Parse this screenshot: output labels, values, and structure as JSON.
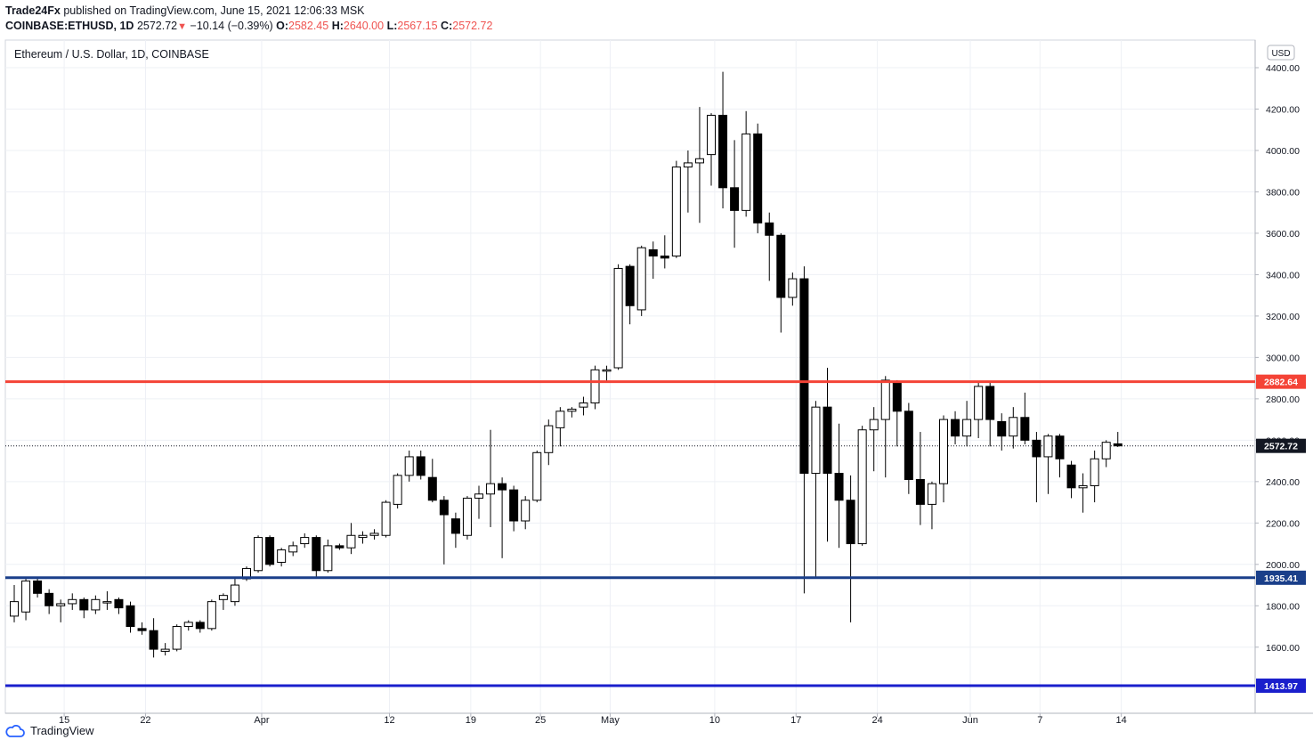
{
  "header": {
    "publisher": "Trade24Fx",
    "published_text": "published on TradingView.com, June 15, 2021 12:06:33 MSK",
    "symbol": "COINBASE:ETHUSD, 1D",
    "last": "2572.72",
    "change": "−10.14 (−0.39%)",
    "o_label": "O:",
    "o_value": "2582.45",
    "h_label": "H:",
    "h_value": "2640.00",
    "l_label": "L:",
    "l_value": "2567.15",
    "c_label": "C:",
    "c_value": "2572.72"
  },
  "footer": {
    "brand": "TradingView"
  },
  "colors": {
    "support_red": "#f44336",
    "support_blue": "#1a3f8a",
    "support_blue2": "#1a1fcc",
    "grid": "#f0f3fa"
  },
  "chart_data": {
    "type": "candlestick",
    "title": "Ethereum / U.S. Dollar, 1D, COINBASE",
    "currency": "USD",
    "ylim": [
      1380,
      4500
    ],
    "y_ticks": [
      1600,
      1800,
      2000,
      2200,
      2400,
      2600,
      2800,
      3000,
      3200,
      3400,
      3600,
      3800,
      4000,
      4200,
      4400
    ],
    "x_ticks": [
      {
        "label": "15",
        "index": 2
      },
      {
        "label": "22",
        "index": 9
      },
      {
        "label": "Apr",
        "index": 19
      },
      {
        "label": "12",
        "index": 30
      },
      {
        "label": "19",
        "index": 37
      },
      {
        "label": "25",
        "index": 43
      },
      {
        "label": "May",
        "index": 49
      },
      {
        "label": "10",
        "index": 58
      },
      {
        "label": "17",
        "index": 65
      },
      {
        "label": "24",
        "index": 72
      },
      {
        "label": "Jun",
        "index": 80
      },
      {
        "label": "7",
        "index": 86
      },
      {
        "label": "14",
        "index": 93
      }
    ],
    "levels": [
      {
        "value": 2882.64,
        "label": "2882.64",
        "color": "#f44336"
      },
      {
        "value": 1935.41,
        "label": "1935.41",
        "color": "#1a3f8a"
      },
      {
        "value": 1413.97,
        "label": "1413.97",
        "color": "#1a1fcc"
      }
    ],
    "last_price": {
      "value": 2572.72,
      "label": "2572.72"
    },
    "candles": [
      {
        "o": 1750,
        "h": 1900,
        "l": 1720,
        "c": 1820
      },
      {
        "o": 1770,
        "h": 1930,
        "l": 1730,
        "c": 1920
      },
      {
        "o": 1920,
        "h": 1935,
        "l": 1840,
        "c": 1860
      },
      {
        "o": 1860,
        "h": 1880,
        "l": 1760,
        "c": 1800
      },
      {
        "o": 1800,
        "h": 1830,
        "l": 1720,
        "c": 1810
      },
      {
        "o": 1810,
        "h": 1860,
        "l": 1780,
        "c": 1830
      },
      {
        "o": 1830,
        "h": 1840,
        "l": 1740,
        "c": 1780
      },
      {
        "o": 1780,
        "h": 1850,
        "l": 1760,
        "c": 1830
      },
      {
        "o": 1820,
        "h": 1870,
        "l": 1780,
        "c": 1820
      },
      {
        "o": 1830,
        "h": 1840,
        "l": 1760,
        "c": 1790
      },
      {
        "o": 1800,
        "h": 1820,
        "l": 1670,
        "c": 1700
      },
      {
        "o": 1690,
        "h": 1720,
        "l": 1660,
        "c": 1680
      },
      {
        "o": 1680,
        "h": 1740,
        "l": 1550,
        "c": 1590
      },
      {
        "o": 1580,
        "h": 1620,
        "l": 1560,
        "c": 1590
      },
      {
        "o": 1590,
        "h": 1710,
        "l": 1580,
        "c": 1700
      },
      {
        "o": 1700,
        "h": 1730,
        "l": 1680,
        "c": 1720
      },
      {
        "o": 1720,
        "h": 1730,
        "l": 1670,
        "c": 1690
      },
      {
        "o": 1690,
        "h": 1830,
        "l": 1680,
        "c": 1820
      },
      {
        "o": 1830,
        "h": 1860,
        "l": 1780,
        "c": 1850
      },
      {
        "o": 1820,
        "h": 1930,
        "l": 1800,
        "c": 1900
      },
      {
        "o": 1930,
        "h": 1990,
        "l": 1920,
        "c": 1980
      },
      {
        "o": 1970,
        "h": 2140,
        "l": 1960,
        "c": 2130
      },
      {
        "o": 2130,
        "h": 2140,
        "l": 1990,
        "c": 2000
      },
      {
        "o": 2010,
        "h": 2080,
        "l": 1990,
        "c": 2070
      },
      {
        "o": 2060,
        "h": 2110,
        "l": 2040,
        "c": 2090
      },
      {
        "o": 2100,
        "h": 2150,
        "l": 2080,
        "c": 2130
      },
      {
        "o": 2130,
        "h": 2140,
        "l": 1940,
        "c": 1970
      },
      {
        "o": 1970,
        "h": 2120,
        "l": 1960,
        "c": 2090
      },
      {
        "o": 2090,
        "h": 2100,
        "l": 2070,
        "c": 2080
      },
      {
        "o": 2080,
        "h": 2200,
        "l": 2050,
        "c": 2140
      },
      {
        "o": 2130,
        "h": 2160,
        "l": 2100,
        "c": 2140
      },
      {
        "o": 2140,
        "h": 2170,
        "l": 2120,
        "c": 2150
      },
      {
        "o": 2140,
        "h": 2310,
        "l": 2130,
        "c": 2300
      },
      {
        "o": 2290,
        "h": 2440,
        "l": 2270,
        "c": 2430
      },
      {
        "o": 2430,
        "h": 2550,
        "l": 2400,
        "c": 2520
      },
      {
        "o": 2520,
        "h": 2550,
        "l": 2410,
        "c": 2430
      },
      {
        "o": 2420,
        "h": 2510,
        "l": 2300,
        "c": 2310
      },
      {
        "o": 2310,
        "h": 2330,
        "l": 2000,
        "c": 2240
      },
      {
        "o": 2220,
        "h": 2250,
        "l": 2080,
        "c": 2150
      },
      {
        "o": 2140,
        "h": 2330,
        "l": 2120,
        "c": 2320
      },
      {
        "o": 2320,
        "h": 2380,
        "l": 2220,
        "c": 2340
      },
      {
        "o": 2340,
        "h": 2650,
        "l": 2180,
        "c": 2390
      },
      {
        "o": 2390,
        "h": 2420,
        "l": 2030,
        "c": 2360
      },
      {
        "o": 2360,
        "h": 2380,
        "l": 2160,
        "c": 2210
      },
      {
        "o": 2210,
        "h": 2330,
        "l": 2170,
        "c": 2310
      },
      {
        "o": 2310,
        "h": 2550,
        "l": 2300,
        "c": 2540
      },
      {
        "o": 2540,
        "h": 2700,
        "l": 2480,
        "c": 2670
      },
      {
        "o": 2660,
        "h": 2760,
        "l": 2570,
        "c": 2740
      },
      {
        "o": 2740,
        "h": 2760,
        "l": 2710,
        "c": 2750
      },
      {
        "o": 2760,
        "h": 2810,
        "l": 2720,
        "c": 2780
      },
      {
        "o": 2780,
        "h": 2960,
        "l": 2750,
        "c": 2940
      },
      {
        "o": 2940,
        "h": 2960,
        "l": 2880,
        "c": 2940
      },
      {
        "o": 2950,
        "h": 3450,
        "l": 2940,
        "c": 3430
      },
      {
        "o": 3440,
        "h": 3450,
        "l": 3160,
        "c": 3250
      },
      {
        "o": 3230,
        "h": 3540,
        "l": 3200,
        "c": 3530
      },
      {
        "o": 3520,
        "h": 3560,
        "l": 3380,
        "c": 3490
      },
      {
        "o": 3490,
        "h": 3590,
        "l": 3430,
        "c": 3480
      },
      {
        "o": 3490,
        "h": 3950,
        "l": 3480,
        "c": 3920
      },
      {
        "o": 3920,
        "h": 4000,
        "l": 3700,
        "c": 3940
      },
      {
        "o": 3940,
        "h": 4210,
        "l": 3650,
        "c": 3960
      },
      {
        "o": 3980,
        "h": 4180,
        "l": 3830,
        "c": 4170
      },
      {
        "o": 4170,
        "h": 4380,
        "l": 3720,
        "c": 3820
      },
      {
        "o": 3820,
        "h": 4050,
        "l": 3530,
        "c": 3710
      },
      {
        "o": 3710,
        "h": 4190,
        "l": 3680,
        "c": 4080
      },
      {
        "o": 4080,
        "h": 4130,
        "l": 3600,
        "c": 3650
      },
      {
        "o": 3650,
        "h": 3700,
        "l": 3370,
        "c": 3590
      },
      {
        "o": 3590,
        "h": 3600,
        "l": 3120,
        "c": 3290
      },
      {
        "o": 3290,
        "h": 3410,
        "l": 3250,
        "c": 3380
      },
      {
        "o": 3380,
        "h": 3440,
        "l": 1860,
        "c": 2440
      },
      {
        "o": 2440,
        "h": 2790,
        "l": 1940,
        "c": 2760
      },
      {
        "o": 2760,
        "h": 2950,
        "l": 2110,
        "c": 2440
      },
      {
        "o": 2440,
        "h": 2680,
        "l": 2080,
        "c": 2310
      },
      {
        "o": 2310,
        "h": 2430,
        "l": 1720,
        "c": 2100
      },
      {
        "o": 2100,
        "h": 2670,
        "l": 2090,
        "c": 2650
      },
      {
        "o": 2650,
        "h": 2760,
        "l": 2450,
        "c": 2700
      },
      {
        "o": 2700,
        "h": 2910,
        "l": 2420,
        "c": 2890
      },
      {
        "o": 2880,
        "h": 2890,
        "l": 2570,
        "c": 2740
      },
      {
        "o": 2740,
        "h": 2780,
        "l": 2340,
        "c": 2410
      },
      {
        "o": 2410,
        "h": 2640,
        "l": 2190,
        "c": 2290
      },
      {
        "o": 2290,
        "h": 2400,
        "l": 2170,
        "c": 2390
      },
      {
        "o": 2390,
        "h": 2720,
        "l": 2300,
        "c": 2700
      },
      {
        "o": 2700,
        "h": 2740,
        "l": 2580,
        "c": 2620
      },
      {
        "o": 2620,
        "h": 2790,
        "l": 2570,
        "c": 2700
      },
      {
        "o": 2700,
        "h": 2880,
        "l": 2610,
        "c": 2860
      },
      {
        "o": 2860,
        "h": 2880,
        "l": 2570,
        "c": 2700
      },
      {
        "o": 2690,
        "h": 2730,
        "l": 2550,
        "c": 2620
      },
      {
        "o": 2620,
        "h": 2760,
        "l": 2560,
        "c": 2710
      },
      {
        "o": 2710,
        "h": 2830,
        "l": 2580,
        "c": 2600
      },
      {
        "o": 2600,
        "h": 2640,
        "l": 2300,
        "c": 2520
      },
      {
        "o": 2520,
        "h": 2630,
        "l": 2340,
        "c": 2620
      },
      {
        "o": 2620,
        "h": 2630,
        "l": 2420,
        "c": 2510
      },
      {
        "o": 2480,
        "h": 2500,
        "l": 2320,
        "c": 2370
      },
      {
        "o": 2370,
        "h": 2440,
        "l": 2250,
        "c": 2380
      },
      {
        "o": 2380,
        "h": 2550,
        "l": 2300,
        "c": 2510
      },
      {
        "o": 2510,
        "h": 2600,
        "l": 2470,
        "c": 2590
      },
      {
        "o": 2582.45,
        "h": 2640,
        "l": 2567.15,
        "c": 2572.72
      }
    ]
  }
}
